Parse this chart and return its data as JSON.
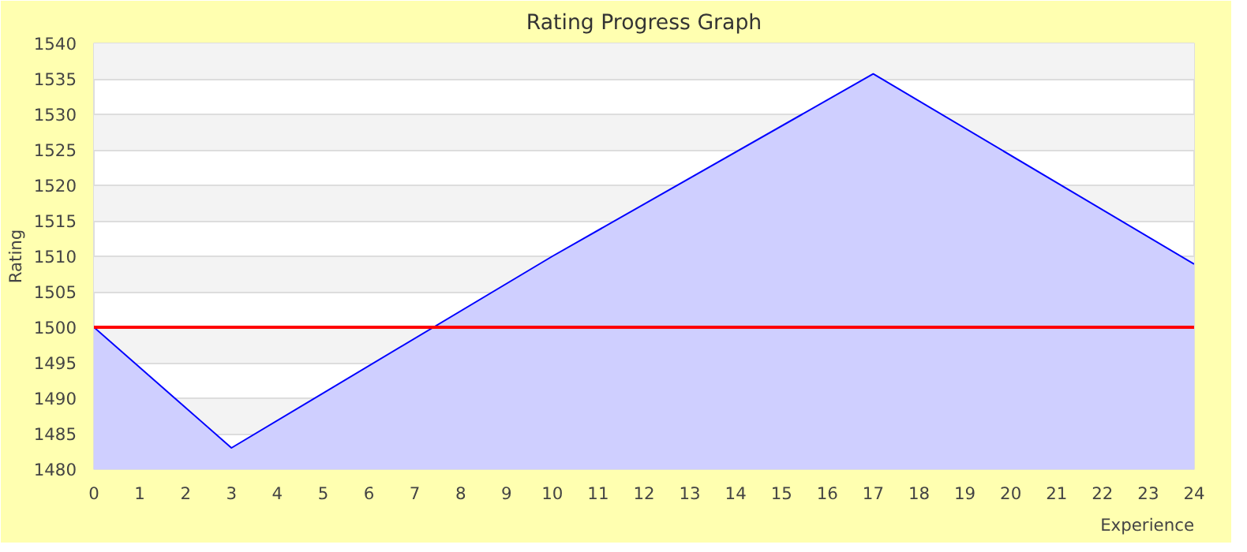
{
  "chart_data": {
    "type": "area",
    "title": "Rating Progress Graph",
    "xlabel": "Experience",
    "ylabel": "Rating",
    "x": [
      0,
      3,
      10,
      17,
      24
    ],
    "series": [
      {
        "color": "#0000ff",
        "values": [
          1500,
          1483,
          1510,
          1535.7,
          1508.9
        ]
      }
    ],
    "xlim": [
      0,
      24
    ],
    "xticks": [
      0,
      1,
      2,
      3,
      4,
      5,
      6,
      7,
      8,
      9,
      10,
      11,
      12,
      13,
      14,
      15,
      16,
      17,
      18,
      19,
      20,
      21,
      22,
      23,
      24
    ],
    "ylim": [
      1480,
      1540
    ],
    "yticks": [
      1480,
      1485,
      1490,
      1495,
      1500,
      1505,
      1510,
      1515,
      1520,
      1525,
      1530,
      1535,
      1540
    ],
    "grid": "y",
    "ref_lines": [
      {
        "axis": "y",
        "value": 1500,
        "color": "#ff0000"
      }
    ]
  }
}
